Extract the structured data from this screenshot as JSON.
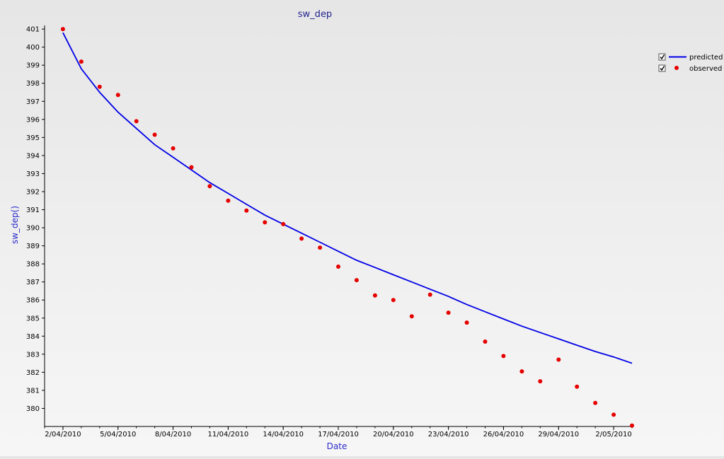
{
  "chart_data": {
    "type": "line",
    "title": "sw_dep",
    "xlabel": "Date",
    "ylabel": "sw_dep()",
    "xlim": [
      "2010-04-01",
      "2010-05-03"
    ],
    "ylim": [
      379,
      401.2
    ],
    "x_ticks": [
      "2010-04-02",
      "2010-04-05",
      "2010-04-08",
      "2010-04-11",
      "2010-04-14",
      "2010-04-17",
      "2010-04-20",
      "2010-04-23",
      "2010-04-26",
      "2010-04-29",
      "2010-05-02"
    ],
    "x_tick_labels": [
      "2/04/2010",
      "5/04/2010",
      "8/04/2010",
      "11/04/2010",
      "14/04/2010",
      "17/04/2010",
      "20/04/2010",
      "23/04/2010",
      "26/04/2010",
      "29/04/2010",
      "2/05/2010"
    ],
    "y_ticks": [
      380,
      381,
      382,
      383,
      384,
      385,
      386,
      387,
      388,
      389,
      390,
      391,
      392,
      393,
      394,
      395,
      396,
      397,
      398,
      399,
      400,
      401
    ],
    "grid": false,
    "legend_position": "top-right",
    "colors": {
      "predicted": "#0000e6",
      "observed": "#e60000",
      "title": "#1f1f8f",
      "axis_title": "#2b2bcc"
    },
    "series": [
      {
        "name": "predicted",
        "style": "line",
        "x": [
          "2010-04-02",
          "2010-04-03",
          "2010-04-04",
          "2010-04-05",
          "2010-04-06",
          "2010-04-07",
          "2010-04-08",
          "2010-04-09",
          "2010-04-10",
          "2010-04-11",
          "2010-04-12",
          "2010-04-13",
          "2010-04-14",
          "2010-04-15",
          "2010-04-16",
          "2010-04-17",
          "2010-04-18",
          "2010-04-19",
          "2010-04-20",
          "2010-04-21",
          "2010-04-22",
          "2010-04-23",
          "2010-04-24",
          "2010-04-25",
          "2010-04-26",
          "2010-04-27",
          "2010-04-28",
          "2010-04-29",
          "2010-04-30",
          "2010-05-01",
          "2010-05-02",
          "2010-05-03"
        ],
        "values": [
          400.8,
          398.8,
          397.5,
          396.4,
          395.5,
          394.6,
          393.9,
          393.2,
          392.5,
          391.9,
          391.3,
          390.7,
          390.2,
          389.7,
          389.2,
          388.7,
          388.2,
          387.8,
          387.4,
          387.0,
          386.6,
          386.2,
          385.75,
          385.35,
          384.95,
          384.55,
          384.2,
          383.85,
          383.5,
          383.15,
          382.85,
          382.5
        ]
      },
      {
        "name": "observed",
        "style": "scatter",
        "x": [
          "2010-04-02",
          "2010-04-03",
          "2010-04-04",
          "2010-04-05",
          "2010-04-06",
          "2010-04-07",
          "2010-04-08",
          "2010-04-09",
          "2010-04-10",
          "2010-04-11",
          "2010-04-12",
          "2010-04-13",
          "2010-04-14",
          "2010-04-15",
          "2010-04-16",
          "2010-04-17",
          "2010-04-18",
          "2010-04-19",
          "2010-04-20",
          "2010-04-21",
          "2010-04-22",
          "2010-04-23",
          "2010-04-24",
          "2010-04-25",
          "2010-04-26",
          "2010-04-27",
          "2010-04-28",
          "2010-04-29",
          "2010-04-30",
          "2010-05-01",
          "2010-05-02",
          "2010-05-03"
        ],
        "values": [
          401.0,
          399.2,
          397.8,
          397.35,
          395.9,
          395.15,
          394.4,
          393.35,
          392.3,
          391.5,
          390.95,
          390.3,
          390.2,
          389.4,
          388.9,
          387.85,
          387.1,
          386.25,
          386.0,
          385.1,
          386.3,
          385.3,
          384.75,
          383.7,
          382.9,
          382.05,
          381.5,
          382.7,
          381.2,
          380.3,
          379.65,
          379.05
        ]
      }
    ]
  }
}
